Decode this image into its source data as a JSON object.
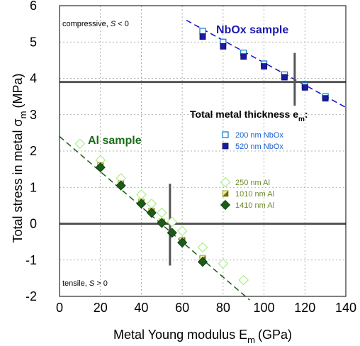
{
  "chart_data": {
    "type": "scatter",
    "xlabel": "Metal Young modulus E",
    "xlabel_sub": "m",
    "xlabel_unit": "(GPa)",
    "ylabel": "Total stress in metal σ",
    "ylabel_sub": "m",
    "ylabel_unit": "(MPa)",
    "xlim": [
      0,
      140
    ],
    "ylim": [
      -2,
      6
    ],
    "xticks": [
      0,
      20,
      40,
      60,
      80,
      100,
      120,
      140
    ],
    "yticks": [
      -2,
      -1,
      0,
      1,
      2,
      3,
      4,
      5,
      6
    ],
    "grid": true,
    "annotations": {
      "compressive_prefix": "compressive, ",
      "compressive_var": "S",
      "compressive_cond": " < 0",
      "tensile_prefix": "tensile, ",
      "tensile_var": "S",
      "tensile_cond": " > 0",
      "nbox_label": "NbOx sample",
      "al_label": "Al sample",
      "thickness_title": "Total metal thickness e",
      "thickness_sub": "m",
      "thickness_colon": ":"
    },
    "reference_lines": {
      "nbox_intercept": {
        "x": 115,
        "y": 3.9
      },
      "al_intercept": {
        "x": 54,
        "y": 0
      }
    },
    "fits": [
      {
        "group": "NbOx",
        "x": [
          62,
          140
        ],
        "y": [
          5.6,
          3.2
        ],
        "color": "#1010cc"
      },
      {
        "group": "Al",
        "x": [
          0,
          93
        ],
        "y": [
          2.4,
          -2.1
        ],
        "color": "#1a5c1a"
      }
    ],
    "series": [
      {
        "name": "200 nm NbOx",
        "marker": "square-open",
        "color": "#0077cc",
        "x": [
          70,
          80,
          90,
          100,
          110,
          120,
          130
        ],
        "y": [
          5.3,
          5.0,
          4.7,
          4.4,
          4.1,
          3.8,
          3.5
        ]
      },
      {
        "name": "520 nm NbOx",
        "marker": "square-filled",
        "color": "#1a1aa0",
        "x": [
          70,
          80,
          90,
          100,
          110,
          120,
          130
        ],
        "y": [
          5.15,
          4.88,
          4.6,
          4.33,
          4.03,
          3.75,
          3.45
        ]
      },
      {
        "name": "250 nm Al",
        "marker": "diamond-open",
        "color": "#aaee88",
        "x": [
          10,
          20,
          30,
          40,
          45,
          50,
          55,
          60,
          70,
          80,
          90
        ],
        "y": [
          2.2,
          1.75,
          1.25,
          0.8,
          0.55,
          0.3,
          0.05,
          -0.2,
          -0.65,
          -1.1,
          -1.55
        ]
      },
      {
        "name": "1010 nm Al",
        "marker": "square-half",
        "color": "#aaaa33",
        "x": [
          20,
          30,
          40,
          45,
          50,
          60,
          70
        ],
        "y": [
          1.6,
          1.1,
          0.6,
          0.35,
          0.05,
          -0.45,
          -0.95
        ]
      },
      {
        "name": "1410 nm Al",
        "marker": "diamond-filled",
        "color": "#1a5c1a",
        "x": [
          20,
          30,
          40,
          45,
          50,
          55,
          60,
          70
        ],
        "y": [
          1.55,
          1.05,
          0.55,
          0.3,
          0.02,
          -0.25,
          -0.52,
          -1.05
        ]
      }
    ],
    "legend": {
      "nbox": [
        {
          "number": "200",
          "unit": " nm NbOx",
          "series": 0
        },
        {
          "number": "520",
          "unit": " nm NbOx",
          "series": 1
        }
      ],
      "al": [
        {
          "number": "250",
          "unit": " nm Al",
          "series": 2
        },
        {
          "number": "1010",
          "unit": " nm Al",
          "series": 3
        },
        {
          "number": "1410",
          "unit": " nm Al",
          "series": 4
        }
      ]
    }
  }
}
